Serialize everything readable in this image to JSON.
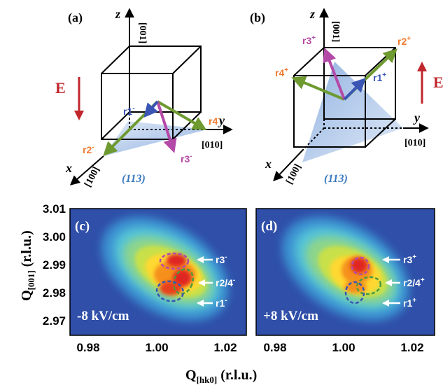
{
  "panel_a": {
    "label": "(a)",
    "axis_z": "z",
    "axis_y": "y",
    "axis_x": "x",
    "dir_z": "[001]",
    "dir_y": "[010]",
    "dir_x": "[100]",
    "plane": "(113)",
    "field_label": "E",
    "field_direction": "down",
    "vectors": [
      {
        "name": "r1",
        "sign": "-",
        "color": "#3a55b4"
      },
      {
        "name": "r2",
        "sign": "-",
        "color": "#6e9a30"
      },
      {
        "name": "r3",
        "sign": "-",
        "color": "#b44aa8"
      },
      {
        "name": "r4",
        "sign": "-",
        "color": "#f07a30"
      }
    ]
  },
  "panel_b": {
    "label": "(b)",
    "axis_z": "z",
    "axis_y": "y",
    "axis_x": "x",
    "dir_z": "[001]",
    "dir_y": "[010]",
    "dir_x": "[100]",
    "plane": "(113)",
    "field_label": "E",
    "field_direction": "up",
    "vectors": [
      {
        "name": "r1",
        "sign": "+",
        "color": "#3a55b4"
      },
      {
        "name": "r2",
        "sign": "+",
        "color": "#f07a30"
      },
      {
        "name": "r3",
        "sign": "+",
        "color": "#b44aa8"
      },
      {
        "name": "r4",
        "sign": "+",
        "color": "#f07a30"
      }
    ]
  },
  "panel_c": {
    "label": "(c)",
    "field_text": "-8 kV/cm",
    "peaks": [
      {
        "name": "r3",
        "sign": "-",
        "q_hk0": 1.006,
        "q_001": 2.9905
      },
      {
        "name": "r2/4",
        "sign": "-",
        "q_hk0": 1.007,
        "q_001": 2.9835
      },
      {
        "name": "r1",
        "sign": "-",
        "q_hk0": 1.004,
        "q_001": 2.9795
      }
    ]
  },
  "panel_d": {
    "label": "(d)",
    "field_text": "+8 kV/cm",
    "peaks": [
      {
        "name": "r3",
        "sign": "+",
        "q_hk0": 1.006,
        "q_001": 2.989
      },
      {
        "name": "r2/4",
        "sign": "+",
        "q_hk0": 1.008,
        "q_001": 2.983
      },
      {
        "name": "r1",
        "sign": "+",
        "q_hk0": 1.005,
        "q_001": 2.9805
      }
    ]
  },
  "map_axes": {
    "ylabel_main": "Q",
    "ylabel_sub": "[001]",
    "ylabel_unit": " (r.l.u.)",
    "xlabel_main": "Q",
    "xlabel_sub": "[hk0]",
    "xlabel_unit": " (r.l.u.)",
    "yticks": [
      "3.01",
      "3.00",
      "2.99",
      "2.98",
      "2.97"
    ],
    "xticks": [
      "0.98",
      "1.00",
      "1.02"
    ]
  },
  "colors": {
    "background_map": "#2f4fa8",
    "arrow_E": "#c0262c",
    "label_orange": "#f07a30",
    "label_blue": "#2a4aa8",
    "plane_italic": "#3a78c0"
  }
}
